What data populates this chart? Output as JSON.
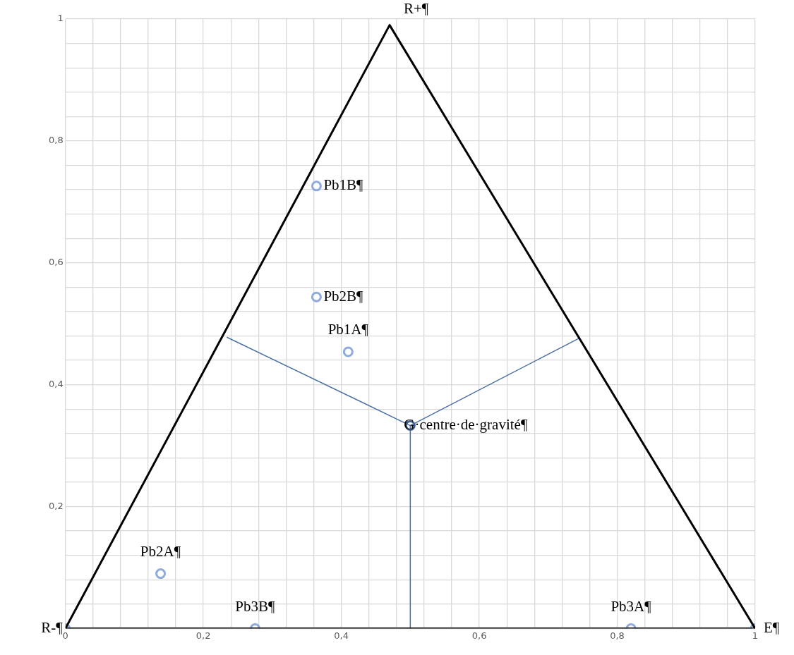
{
  "chart_data": {
    "type": "scatter",
    "xlim": [
      0,
      1
    ],
    "ylim": [
      0,
      1
    ],
    "xticks": [
      0,
      {
        "value": 0.04,
        "label": null
      },
      {
        "value": 0.08,
        "label": null
      },
      {
        "value": 0.12,
        "label": null
      },
      {
        "value": 0.16,
        "label": null
      },
      {
        "value": 0.2,
        "label": "0,2"
      },
      {
        "value": 0.24,
        "label": null
      },
      {
        "value": 0.28,
        "label": null
      },
      {
        "value": 0.32,
        "label": null
      },
      {
        "value": 0.36,
        "label": null
      },
      {
        "value": 0.4,
        "label": "0,4"
      },
      {
        "value": 0.44,
        "label": null
      },
      {
        "value": 0.48,
        "label": null
      },
      {
        "value": 0.52,
        "label": null
      },
      {
        "value": 0.56,
        "label": null
      },
      {
        "value": 0.6,
        "label": "0,6"
      },
      {
        "value": 0.64,
        "label": null
      },
      {
        "value": 0.68,
        "label": null
      },
      {
        "value": 0.72,
        "label": null
      },
      {
        "value": 0.76,
        "label": null
      },
      {
        "value": 0.8,
        "label": "0,8"
      },
      {
        "value": 0.84,
        "label": null
      },
      {
        "value": 0.88,
        "label": null
      },
      {
        "value": 0.92,
        "label": null
      },
      {
        "value": 0.96,
        "label": null
      },
      1
    ],
    "yticks": [
      {
        "value": 0,
        "label": null
      },
      {
        "value": 0.04,
        "label": null
      },
      {
        "value": 0.08,
        "label": null
      },
      {
        "value": 0.12,
        "label": null
      },
      {
        "value": 0.16,
        "label": null
      },
      {
        "value": 0.2,
        "label": "0,2"
      },
      {
        "value": 0.24,
        "label": null
      },
      {
        "value": 0.28,
        "label": null
      },
      {
        "value": 0.32,
        "label": null
      },
      {
        "value": 0.36,
        "label": null
      },
      {
        "value": 0.4,
        "label": "0,4"
      },
      {
        "value": 0.44,
        "label": null
      },
      {
        "value": 0.48,
        "label": null
      },
      {
        "value": 0.52,
        "label": null
      },
      {
        "value": 0.56,
        "label": null
      },
      {
        "value": 0.6,
        "label": "0,6"
      },
      {
        "value": 0.64,
        "label": null
      },
      {
        "value": 0.68,
        "label": null
      },
      {
        "value": 0.72,
        "label": null
      },
      {
        "value": 0.76,
        "label": null
      },
      {
        "value": 0.8,
        "label": "0,8"
      },
      {
        "value": 0.84,
        "label": null
      },
      {
        "value": 0.88,
        "label": null
      },
      {
        "value": 0.92,
        "label": null
      },
      {
        "value": 0.96,
        "label": null
      },
      1
    ],
    "grid": true,
    "legend": false,
    "series": [
      {
        "type": "line",
        "marker": "none",
        "color": "#000000",
        "x": [
          0,
          0.47,
          1
        ],
        "values": [
          0,
          0.99,
          0
        ]
      },
      {
        "type": "line",
        "marker": "none",
        "color": "#000000",
        "x": [
          0,
          1
        ],
        "values": [
          0,
          0
        ]
      },
      {
        "type": "line",
        "marker": "none",
        "color": "#4a6fa5",
        "x": [
          0.234,
          0.5,
          0.746
        ],
        "values": [
          0.478,
          0.333,
          0.477
        ]
      },
      {
        "type": "line",
        "marker": "none",
        "color": "#4a6fa5",
        "x": [
          0.5,
          0.5
        ],
        "values": [
          0.333,
          0
        ]
      },
      {
        "marker": "circle",
        "color": "#8faadc",
        "x": [
          0,
          0.275,
          0.82,
          1,
          0.138,
          0.364,
          0.364,
          0.41
        ],
        "values": [
          0,
          0,
          0,
          0,
          0.09,
          0.726,
          0.544,
          0.454
        ]
      },
      {
        "marker": "circle",
        "color": "#3f5f8f",
        "x": [
          0.5
        ],
        "values": [
          0.333
        ]
      }
    ],
    "annotations": [
      {
        "text": "R+¶",
        "x": 0.47,
        "y": 0.99
      },
      {
        "text": "R-¶",
        "x": 0,
        "y": 0
      },
      {
        "text": "E¶",
        "x": 1,
        "y": 0
      },
      {
        "text": "Pb1B¶",
        "x": 0.364,
        "y": 0.726
      },
      {
        "text": "Pb2B¶",
        "x": 0.364,
        "y": 0.544
      },
      {
        "text": "Pb1A¶",
        "x": 0.41,
        "y": 0.454
      },
      {
        "text": "G·centre·de·gravité¶",
        "x": 0.5,
        "y": 0.333
      },
      {
        "text": "Pb2A¶",
        "x": 0.138,
        "y": 0.09
      },
      {
        "text": "Pb3B¶",
        "x": 0.275,
        "y": 0
      },
      {
        "text": "Pb3A¶",
        "x": 0.82,
        "y": 0
      }
    ]
  }
}
